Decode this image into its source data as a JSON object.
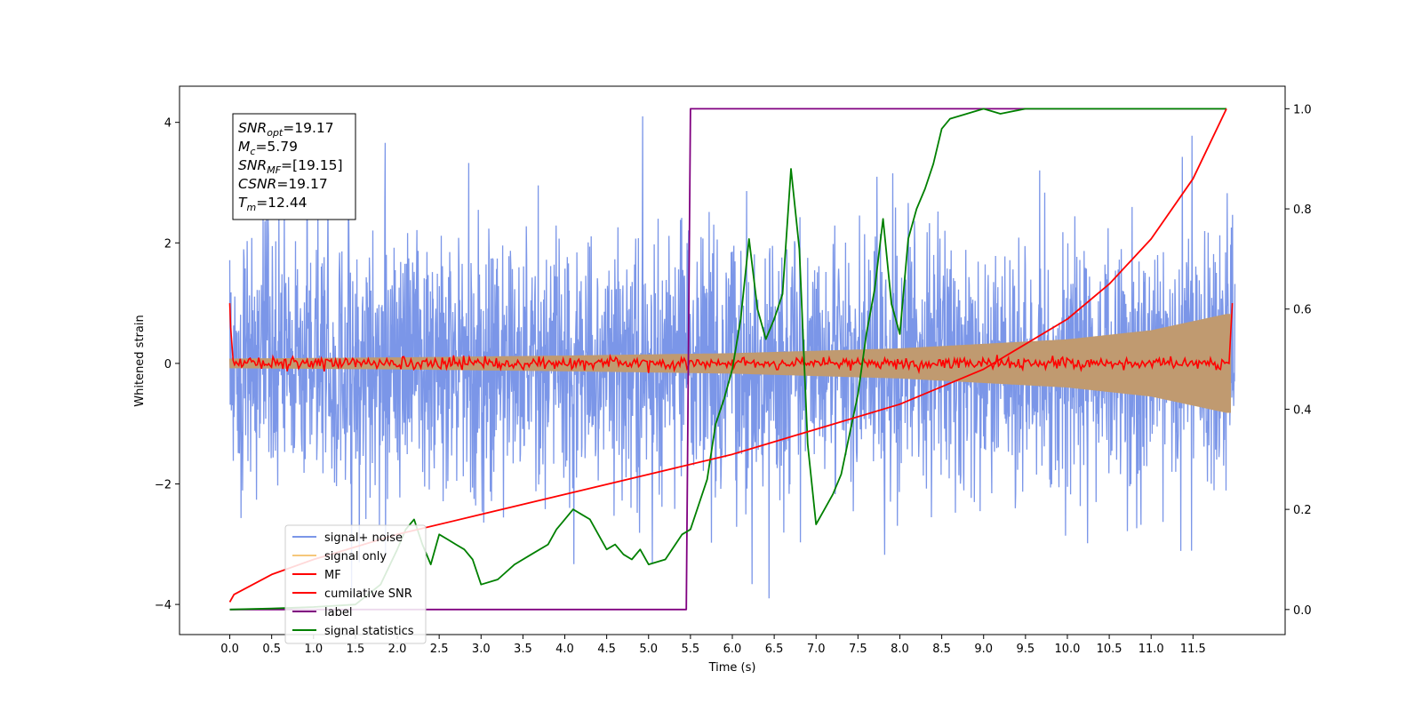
{
  "chart_data": {
    "type": "line",
    "xlabel": "Time (s)",
    "ylabel_left": "Whitened strain",
    "ylabel_right": "",
    "xlim": [
      -0.6,
      12.6
    ],
    "ylim_left": [
      -4.5,
      4.6
    ],
    "ylim_right": [
      -0.05,
      1.045
    ],
    "x_ticks": [
      0.0,
      0.5,
      1.0,
      1.5,
      2.0,
      2.5,
      3.0,
      3.5,
      4.0,
      4.5,
      5.0,
      5.5,
      6.0,
      6.5,
      7.0,
      7.5,
      8.0,
      8.5,
      9.0,
      9.5,
      10.0,
      10.5,
      11.0,
      11.5
    ],
    "x_tick_labels": [
      "0.0",
      "0.5",
      "1.0",
      "1.5",
      "2.0",
      "2.5",
      "3.0",
      "3.5",
      "4.0",
      "4.5",
      "5.0",
      "5.5",
      "6.0",
      "6.5",
      "7.0",
      "7.5",
      "8.0",
      "8.5",
      "9.0",
      "9.5",
      "10.0",
      "10.5",
      "11.0",
      "11.5"
    ],
    "y_ticks_left": [
      -4,
      -2,
      0,
      2,
      4
    ],
    "y_tick_labels_left": [
      "−4",
      "−2",
      "0",
      "2",
      "4"
    ],
    "y_ticks_right": [
      0.0,
      0.2,
      0.4,
      0.6,
      0.8,
      1.0
    ],
    "y_tick_labels_right": [
      "0.0",
      "0.2",
      "0.4",
      "0.6",
      "0.8",
      "1.0"
    ],
    "grid": false,
    "legend_position": "lower-left",
    "annotation": {
      "lines": [
        {
          "base": "SNR",
          "sub": "opt",
          "rest": "=19.17"
        },
        {
          "base": "M",
          "sub": "c",
          "rest": "=5.79"
        },
        {
          "base": "SNR",
          "sub": "MF",
          "rest": "=[19.15]"
        },
        {
          "base": "CSNR",
          "sub": "",
          "rest": "=19.17"
        },
        {
          "base": "T",
          "sub": "m",
          "rest": "=12.44"
        }
      ],
      "position": "top-left"
    },
    "duration": 12.0,
    "series": [
      {
        "name": "signal+ noise",
        "axis": "left",
        "color": "#7b96e8",
        "kind": "noisy_band",
        "description_values": {
          "core_amplitude": 1.4,
          "peak_amplitude": 4.1,
          "min_value": -4.0
        }
      },
      {
        "name": "signal only",
        "axis": "left",
        "color": "#f5c77a",
        "kind": "chirp_envelope",
        "envelope": {
          "x": [
            0.0,
            2.0,
            4.0,
            6.0,
            8.0,
            10.0,
            11.0,
            11.9
          ],
          "amplitude": [
            0.08,
            0.1,
            0.13,
            0.17,
            0.25,
            0.4,
            0.55,
            0.82
          ]
        }
      },
      {
        "name": "MF",
        "axis": "left",
        "color": "#ff0000",
        "kind": "flat_noise",
        "values": {
          "start_value": 1.0,
          "amplitude": 0.08,
          "end_value": 1.0
        }
      },
      {
        "name": "cumilative SNR",
        "axis": "right",
        "color": "#ff0000",
        "x": [
          0.0,
          0.05,
          0.5,
          1.0,
          2.0,
          3.0,
          4.0,
          5.0,
          6.0,
          7.0,
          8.0,
          9.0,
          10.0,
          10.5,
          11.0,
          11.5,
          11.9
        ],
        "y": [
          0.015,
          0.03,
          0.07,
          0.1,
          0.15,
          0.19,
          0.23,
          0.27,
          0.31,
          0.36,
          0.41,
          0.48,
          0.58,
          0.65,
          0.74,
          0.86,
          1.0
        ]
      },
      {
        "name": "label",
        "axis": "right",
        "color": "#800080",
        "x": [
          0.0,
          5.45,
          5.5,
          11.9
        ],
        "y": [
          0.0,
          0.0,
          1.0,
          1.0
        ]
      },
      {
        "name": "signal statistics",
        "axis": "right",
        "color": "#008000",
        "x": [
          0.0,
          0.5,
          1.0,
          1.5,
          1.8,
          2.0,
          2.1,
          2.2,
          2.3,
          2.4,
          2.5,
          2.6,
          2.7,
          2.8,
          2.9,
          3.0,
          3.2,
          3.4,
          3.6,
          3.8,
          3.9,
          4.0,
          4.1,
          4.2,
          4.3,
          4.4,
          4.5,
          4.6,
          4.7,
          4.8,
          4.9,
          5.0,
          5.2,
          5.4,
          5.5,
          5.6,
          5.7,
          5.8,
          5.9,
          6.0,
          6.1,
          6.2,
          6.3,
          6.4,
          6.5,
          6.6,
          6.7,
          6.8,
          6.9,
          7.0,
          7.1,
          7.2,
          7.3,
          7.4,
          7.5,
          7.6,
          7.7,
          7.8,
          7.9,
          8.0,
          8.1,
          8.2,
          8.3,
          8.4,
          8.5,
          8.6,
          8.8,
          9.0,
          9.2,
          9.5,
          10.0,
          10.5,
          11.0,
          11.5,
          11.9
        ],
        "y": [
          0.0,
          0.002,
          0.005,
          0.01,
          0.05,
          0.12,
          0.16,
          0.18,
          0.13,
          0.09,
          0.15,
          0.14,
          0.13,
          0.12,
          0.1,
          0.05,
          0.06,
          0.09,
          0.11,
          0.13,
          0.16,
          0.18,
          0.2,
          0.19,
          0.18,
          0.15,
          0.12,
          0.13,
          0.11,
          0.1,
          0.12,
          0.09,
          0.1,
          0.15,
          0.16,
          0.21,
          0.26,
          0.37,
          0.42,
          0.48,
          0.58,
          0.74,
          0.6,
          0.54,
          0.58,
          0.63,
          0.88,
          0.72,
          0.33,
          0.17,
          0.2,
          0.23,
          0.27,
          0.35,
          0.43,
          0.55,
          0.64,
          0.78,
          0.61,
          0.55,
          0.74,
          0.8,
          0.84,
          0.89,
          0.96,
          0.98,
          0.99,
          1.0,
          0.99,
          1.0,
          1.0,
          1.0,
          1.0,
          1.0,
          1.0
        ]
      }
    ]
  }
}
